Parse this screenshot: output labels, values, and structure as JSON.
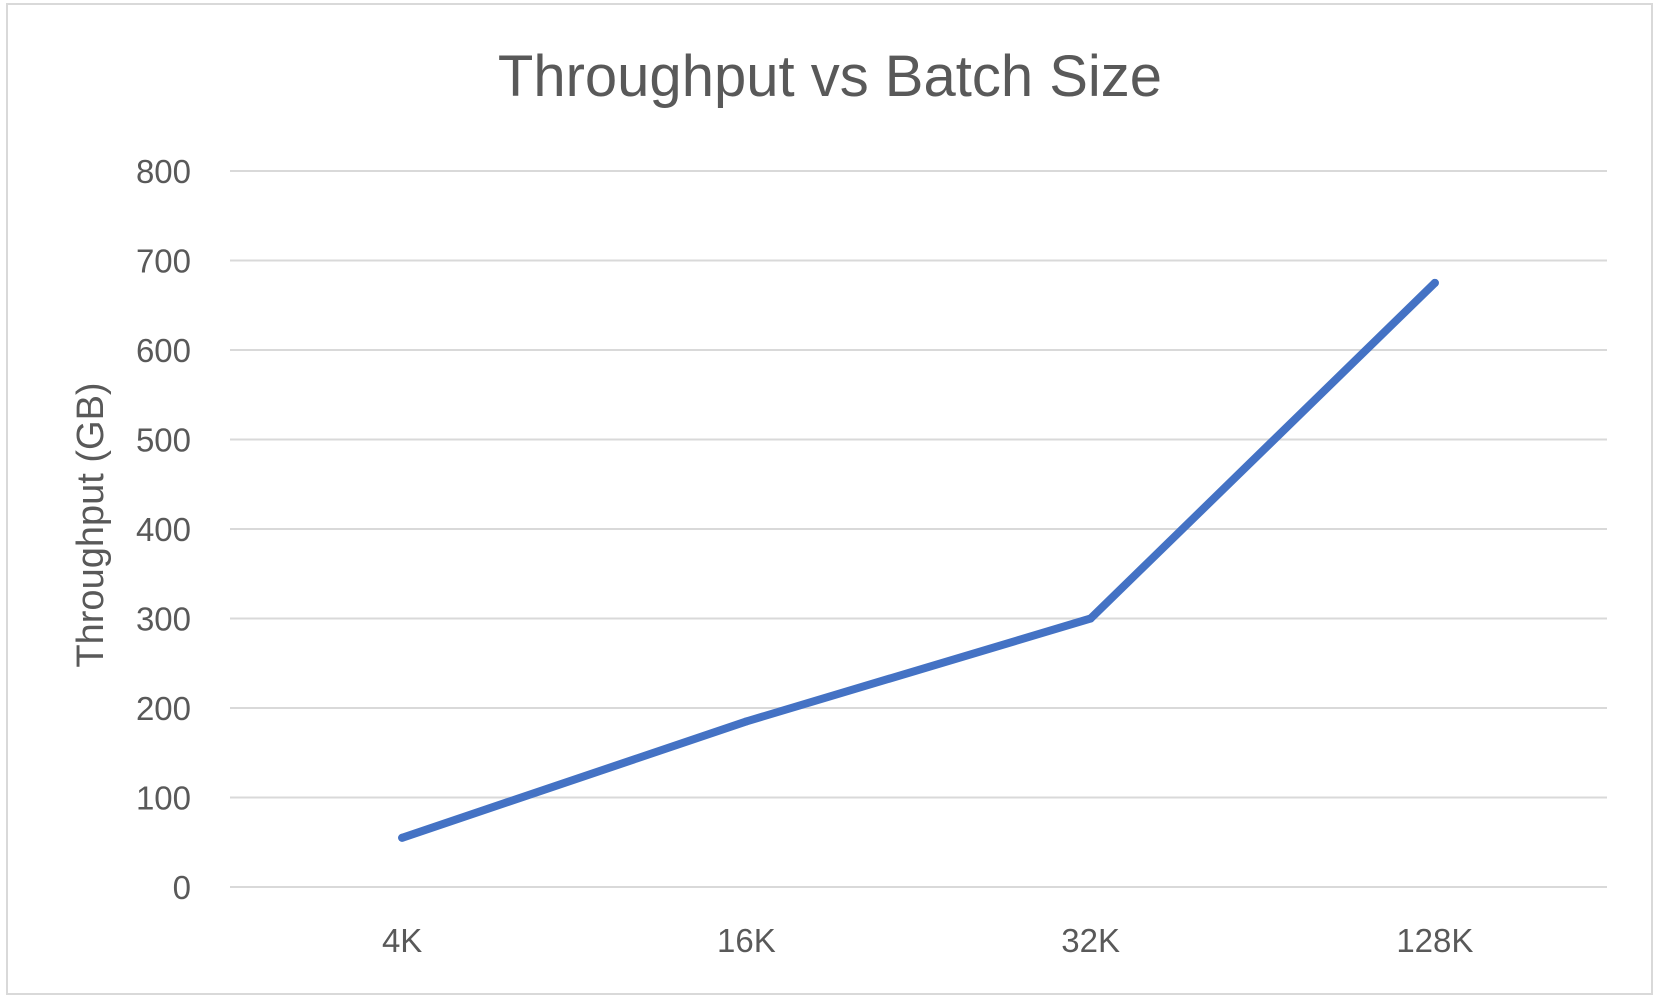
{
  "chart_data": {
    "type": "line",
    "title": "Throughput vs Batch Size",
    "xlabel": "",
    "ylabel": "Throughput (GB)",
    "categories": [
      "4K",
      "16K",
      "32K",
      "128K"
    ],
    "series": [
      {
        "values": [
          55,
          185,
          300,
          675
        ],
        "color": "#4472c4"
      }
    ],
    "ylim": [
      0,
      800
    ],
    "yticks": [
      0,
      100,
      200,
      300,
      400,
      500,
      600,
      700,
      800
    ],
    "grid": true,
    "legend": "none"
  },
  "colors": {
    "gridline": "#d9d9d9",
    "text": "#595959",
    "line": "#4472c4"
  }
}
